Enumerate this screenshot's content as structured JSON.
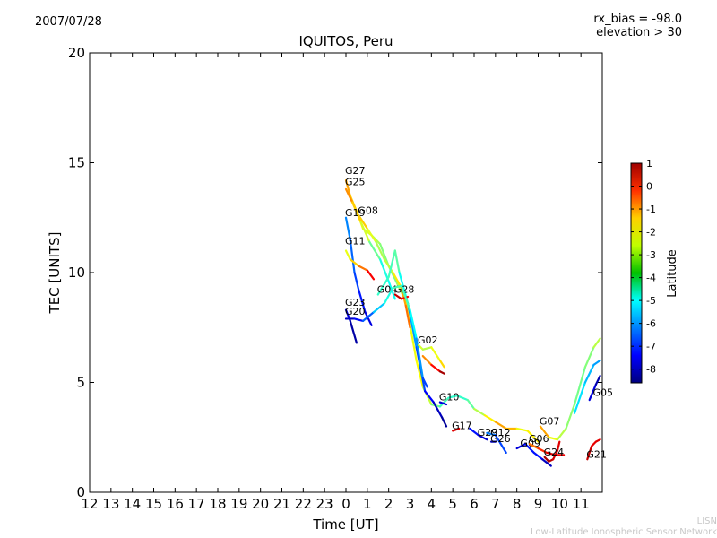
{
  "header": {
    "date": "2007/07/28",
    "rx_bias": "rx_bias = -98.0",
    "elevation": "elevation > 30"
  },
  "footer": {
    "abbr": "LISN",
    "name": "Low-Latitude Ionospheric Sensor Network"
  },
  "chart_data": {
    "type": "line",
    "title": "IQUITOS, Peru",
    "xlabel": "Time [UT]",
    "ylabel": "TEC [UNITS]",
    "x_tick_labels": [
      "12",
      "13",
      "14",
      "15",
      "16",
      "17",
      "18",
      "19",
      "20",
      "21",
      "22",
      "23",
      "0",
      "1",
      "2",
      "3",
      "4",
      "5",
      "6",
      "7",
      "8",
      "9",
      "10",
      "11"
    ],
    "xlim": [
      12,
      36
    ],
    "ylim": [
      0,
      20
    ],
    "y_ticks": [
      0,
      5,
      10,
      15,
      20
    ],
    "grid": false,
    "colorbar": {
      "label": "Latitude",
      "range": [
        -8.6,
        1
      ],
      "ticks": [
        1,
        0,
        -1,
        -2,
        -3,
        -4,
        -5,
        -6,
        -7,
        -8
      ],
      "colormap": "jet"
    },
    "series": [
      {
        "name": "G27",
        "label_at": [
          24.0,
          14.4
        ],
        "segments": [
          [
            [
              24.0,
              14.2,
              -1.5
            ],
            [
              24.2,
              13.5,
              -2.0
            ],
            [
              24.5,
              12.8,
              -2.3
            ],
            [
              24.8,
              12.0,
              -2.8
            ],
            [
              25.2,
              11.7,
              -3.2
            ],
            [
              25.6,
              11.3,
              -3.5
            ],
            [
              26.0,
              10.3,
              -4.0
            ],
            [
              26.4,
              9.5,
              -3.8
            ],
            [
              26.8,
              8.7,
              -3.0
            ],
            [
              27.3,
              6.0,
              -2.5
            ],
            [
              27.6,
              4.8,
              -2.8
            ],
            [
              28.0,
              4.0,
              -3.5
            ],
            [
              28.4,
              3.9,
              -4.2
            ],
            [
              28.8,
              4.3,
              -4.5
            ],
            [
              29.2,
              4.4,
              -4.6
            ],
            [
              29.7,
              4.2,
              -4.4
            ],
            [
              30.0,
              3.8,
              -3.8
            ],
            [
              30.5,
              3.5,
              -2.8
            ],
            [
              31.0,
              3.2,
              -2.2
            ],
            [
              31.5,
              2.9,
              -1.3
            ],
            [
              32.0,
              2.9,
              -2.5
            ],
            [
              32.5,
              2.8,
              -3.0
            ],
            [
              33.0,
              2.3,
              -2.0
            ]
          ]
        ]
      },
      {
        "name": "G25",
        "label_at": [
          24.0,
          13.9
        ],
        "segments": [
          [
            [
              24.0,
              13.8,
              -1.3
            ],
            [
              24.3,
              13.2,
              -1.8
            ],
            [
              24.7,
              12.3,
              -2.5
            ],
            [
              25.1,
              11.4,
              -3.5
            ],
            [
              25.6,
              10.6,
              -4.5
            ],
            [
              26.0,
              9.6,
              -5.0
            ],
            [
              26.3,
              8.8,
              -4.8
            ]
          ]
        ]
      },
      {
        "name": "G08",
        "label_at": [
          24.6,
          12.6
        ],
        "segments": [
          [
            [
              24.6,
              12.6,
              -1.8
            ],
            [
              25.0,
              12.0,
              -2.5
            ],
            [
              25.4,
              11.4,
              -3.2
            ],
            [
              25.8,
              10.6,
              -3.5
            ],
            [
              26.2,
              10.0,
              -2.8
            ],
            [
              26.6,
              9.3,
              -2.0
            ],
            [
              26.8,
              8.5,
              -1.5
            ],
            [
              27.0,
              7.5,
              -1.0
            ]
          ]
        ]
      },
      {
        "name": "G19",
        "label_at": [
          24.0,
          12.5
        ],
        "segments": [
          [
            [
              24.0,
              12.5,
              -6.0
            ],
            [
              24.2,
              11.5,
              -6.3
            ],
            [
              24.4,
              10.0,
              -6.6
            ],
            [
              24.6,
              9.2,
              -7.0
            ],
            [
              24.9,
              8.2,
              -7.4
            ],
            [
              25.2,
              7.6,
              -8.0
            ]
          ]
        ]
      },
      {
        "name": "G11",
        "label_at": [
          24.0,
          11.2
        ],
        "segments": [
          [
            [
              24.0,
              11.0,
              -3.0
            ],
            [
              24.2,
              10.6,
              -2.6
            ],
            [
              24.6,
              10.3,
              -1.8
            ],
            [
              25.0,
              10.1,
              -0.8
            ],
            [
              25.3,
              9.7,
              0.5
            ]
          ]
        ]
      },
      {
        "name": "G04",
        "label_at": [
          25.5,
          9.0
        ],
        "segments": [
          [
            [
              25.5,
              9.0,
              -4.8
            ],
            [
              26.0,
              9.8,
              -4.2
            ],
            [
              26.2,
              10.6,
              -4.5
            ],
            [
              26.3,
              11.0,
              -4.0
            ],
            [
              26.5,
              10.0,
              -4.3
            ],
            [
              26.9,
              8.6,
              -5.5
            ],
            [
              27.3,
              6.6,
              -6.5
            ],
            [
              27.7,
              4.6,
              -7.0
            ],
            [
              28.1,
              4.1,
              -7.8
            ],
            [
              28.5,
              3.4,
              -8.2
            ],
            [
              28.7,
              3.0,
              -8.5
            ]
          ]
        ]
      },
      {
        "name": "G28",
        "label_at": [
          26.3,
          9.0
        ],
        "segments": [
          [
            [
              26.3,
              9.0,
              0.4
            ],
            [
              26.6,
              8.8,
              0.2
            ],
            [
              26.9,
              8.9,
              -0.5
            ]
          ]
        ]
      },
      {
        "name": "G23",
        "label_at": [
          24.0,
          8.4
        ],
        "segments": [
          [
            [
              24.0,
              8.3,
              -7.5
            ],
            [
              24.2,
              7.8,
              -8.0
            ],
            [
              24.5,
              6.8,
              -8.5
            ]
          ]
        ]
      },
      {
        "name": "G20",
        "label_at": [
          24.0,
          8.0
        ],
        "segments": [
          [
            [
              24.0,
              7.9,
              -8.3
            ],
            [
              24.4,
              7.9,
              -7.6
            ],
            [
              24.8,
              7.8,
              -7.0
            ],
            [
              25.3,
              8.2,
              -6.0
            ],
            [
              25.8,
              8.6,
              -5.0
            ],
            [
              26.2,
              9.3,
              -4.5
            ],
            [
              26.6,
              9.4,
              -4.2
            ],
            [
              27.0,
              8.3,
              -4.5
            ],
            [
              27.3,
              7.0,
              -5.5
            ],
            [
              27.6,
              5.2,
              -6.5
            ],
            [
              27.8,
              4.8,
              -7.0
            ]
          ]
        ]
      },
      {
        "name": "G02",
        "label_at": [
          27.4,
          6.7
        ],
        "segments": [
          [
            [
              27.4,
              6.7,
              -2.5
            ],
            [
              27.6,
              6.5,
              -3.5
            ],
            [
              28.0,
              6.6,
              -3.0
            ],
            [
              28.4,
              6.0,
              -2.5
            ],
            [
              28.6,
              5.7,
              -2.0
            ]
          ],
          [
            [
              27.6,
              6.2,
              -2.0
            ],
            [
              28.0,
              5.8,
              -1.0
            ],
            [
              28.4,
              5.5,
              0.5
            ],
            [
              28.6,
              5.4,
              0.8
            ]
          ]
        ]
      },
      {
        "name": "G10",
        "label_at": [
          28.4,
          4.1
        ],
        "segments": [
          [
            [
              28.4,
              4.1,
              -8.0
            ],
            [
              28.7,
              4.0,
              -7.5
            ]
          ]
        ]
      },
      {
        "name": "G17",
        "label_at": [
          29.0,
          2.8
        ],
        "segments": [
          [
            [
              29.0,
              2.8,
              0.2
            ],
            [
              29.3,
              2.9,
              0.0
            ]
          ]
        ]
      },
      {
        "name": "G29",
        "label_at": [
          30.2,
          2.5
        ],
        "segments": [
          [
            [
              29.8,
              2.9,
              -7.0
            ],
            [
              30.2,
              2.6,
              -7.5
            ],
            [
              30.6,
              2.4,
              -8.2
            ]
          ]
        ]
      },
      {
        "name": "G12",
        "label_at": [
          30.8,
          2.5
        ],
        "segments": [
          [
            [
              30.6,
              2.7,
              -6.0
            ],
            [
              31.0,
              2.6,
              -6.5
            ],
            [
              31.5,
              1.8,
              -7.0
            ]
          ]
        ]
      },
      {
        "name": "G26",
        "label_at": [
          30.8,
          2.2
        ],
        "segments": [
          [
            [
              30.8,
              2.3,
              -8.3
            ],
            [
              31.0,
              2.3,
              -8.0
            ]
          ]
        ]
      },
      {
        "name": "G09",
        "label_at": [
          32.2,
          2.0
        ],
        "segments": [
          [
            [
              32.0,
              2.0,
              -8.0
            ],
            [
              32.4,
              2.2,
              -7.5
            ],
            [
              32.8,
              1.8,
              -7.0
            ],
            [
              33.2,
              1.5,
              -7.5
            ],
            [
              33.6,
              1.2,
              -8.5
            ]
          ]
        ]
      },
      {
        "name": "G06",
        "label_at": [
          32.6,
          2.2
        ],
        "segments": [
          [
            [
              32.6,
              2.2,
              -1.5
            ],
            [
              33.0,
              2.0,
              -1.0
            ],
            [
              33.4,
              1.8,
              -0.2
            ],
            [
              33.8,
              1.7,
              0.3
            ],
            [
              34.2,
              1.7,
              -0.5
            ]
          ]
        ]
      },
      {
        "name": "G07",
        "label_at": [
          33.1,
          3.0
        ],
        "segments": [
          [
            [
              33.1,
              3.0,
              -1.0
            ],
            [
              33.5,
              2.5,
              -2.5
            ],
            [
              33.9,
              2.4,
              -3.0
            ],
            [
              34.3,
              2.9,
              -3.5
            ],
            [
              34.7,
              4.0,
              -3.8
            ],
            [
              35.2,
              5.7,
              -4.0
            ],
            [
              35.6,
              6.6,
              -3.5
            ],
            [
              35.9,
              7.0,
              -3.0
            ]
          ],
          [
            [
              34.7,
              3.6,
              -5.0
            ],
            [
              35.2,
              5.0,
              -5.5
            ],
            [
              35.6,
              5.8,
              -5.8
            ],
            [
              35.9,
              6.0,
              -6.0
            ]
          ]
        ]
      },
      {
        "name": "G24",
        "label_at": [
          33.3,
          1.6
        ],
        "segments": [
          [
            [
              33.3,
              1.6,
              0.7
            ],
            [
              33.5,
              1.4,
              0.5
            ],
            [
              33.7,
              1.5,
              0.3
            ],
            [
              33.9,
              1.9,
              0.0
            ],
            [
              34.0,
              2.3,
              0.2
            ]
          ]
        ]
      },
      {
        "name": "G21",
        "label_at": [
          35.3,
          1.5
        ],
        "segments": [
          [
            [
              35.3,
              1.5,
              0.5
            ],
            [
              35.5,
              2.1,
              0.2
            ],
            [
              35.7,
              2.3,
              -0.2
            ],
            [
              35.9,
              2.4,
              0.3
            ]
          ]
        ]
      },
      {
        "name": "G05",
        "label_at": [
          35.6,
          4.3
        ],
        "segments": [
          [
            [
              35.4,
              4.2,
              -7.5
            ],
            [
              35.7,
              4.9,
              -8.0
            ],
            [
              35.9,
              5.3,
              -8.3
            ]
          ]
        ]
      }
    ]
  }
}
